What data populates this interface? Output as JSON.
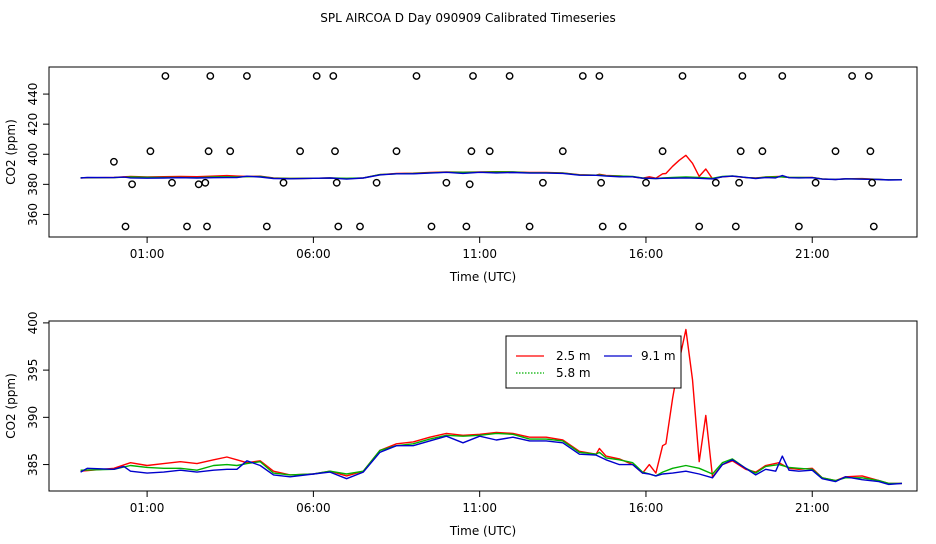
{
  "title": "SPL AIRCOA D  Day 090909  Calibrated Timeseries",
  "colors": {
    "s25": "#ff0000",
    "s58": "#00b000",
    "s91": "#0000cc",
    "points": "#000000"
  },
  "chart_data": [
    {
      "type": "scatter+line",
      "panel": "top",
      "xlabel": "Time (UTC)",
      "ylabel": "CO2 (ppm)",
      "xlim": [
        -1.95,
        24.15
      ],
      "ylim": [
        345,
        458
      ],
      "x_ticks": [
        {
          "x": 1,
          "label": "01:00"
        },
        {
          "x": 6,
          "label": "06:00"
        },
        {
          "x": 11,
          "label": "11:00"
        },
        {
          "x": 16,
          "label": "16:00"
        },
        {
          "x": 21,
          "label": "21:00"
        }
      ],
      "y_ticks": [
        360,
        380,
        400,
        420,
        440
      ],
      "points": [
        [
          0.0,
          395
        ],
        [
          0.35,
          352
        ],
        [
          0.55,
          380
        ],
        [
          1.1,
          402
        ],
        [
          1.55,
          452
        ],
        [
          1.75,
          381
        ],
        [
          2.2,
          352
        ],
        [
          2.55,
          380
        ],
        [
          2.75,
          381
        ],
        [
          2.8,
          352
        ],
        [
          2.85,
          402
        ],
        [
          2.9,
          452
        ],
        [
          3.5,
          402
        ],
        [
          4.0,
          452
        ],
        [
          4.6,
          352
        ],
        [
          5.1,
          381
        ],
        [
          5.6,
          402
        ],
        [
          6.1,
          452
        ],
        [
          6.6,
          452
        ],
        [
          6.65,
          402
        ],
        [
          6.7,
          381
        ],
        [
          6.75,
          352
        ],
        [
          7.4,
          352
        ],
        [
          7.9,
          381
        ],
        [
          8.5,
          402
        ],
        [
          9.1,
          452
        ],
        [
          9.55,
          352
        ],
        [
          10.0,
          381
        ],
        [
          10.6,
          352
        ],
        [
          10.7,
          380
        ],
        [
          10.75,
          402
        ],
        [
          10.8,
          452
        ],
        [
          11.3,
          402
        ],
        [
          11.9,
          452
        ],
        [
          12.5,
          352
        ],
        [
          12.9,
          381
        ],
        [
          13.5,
          402
        ],
        [
          14.1,
          452
        ],
        [
          14.6,
          452
        ],
        [
          14.65,
          381
        ],
        [
          14.7,
          352
        ],
        [
          15.3,
          352
        ],
        [
          16.0,
          381
        ],
        [
          16.5,
          402
        ],
        [
          17.1,
          452
        ],
        [
          17.6,
          352
        ],
        [
          18.1,
          381
        ],
        [
          18.7,
          352
        ],
        [
          18.8,
          381
        ],
        [
          18.85,
          402
        ],
        [
          18.9,
          452
        ],
        [
          19.5,
          402
        ],
        [
          20.1,
          452
        ],
        [
          20.6,
          352
        ],
        [
          21.1,
          381
        ],
        [
          21.7,
          402
        ],
        [
          22.2,
          452
        ],
        [
          22.7,
          452
        ],
        [
          22.75,
          402
        ],
        [
          22.8,
          381
        ],
        [
          22.85,
          352
        ]
      ]
    },
    {
      "type": "line",
      "panel": "bottom",
      "xlabel": "Time (UTC)",
      "ylabel": "CO2 (ppm)",
      "xlim": [
        -1.95,
        24.15
      ],
      "ylim": [
        382.2,
        400.2
      ],
      "x_ticks": [
        {
          "x": 1,
          "label": "01:00"
        },
        {
          "x": 6,
          "label": "06:00"
        },
        {
          "x": 11,
          "label": "11:00"
        },
        {
          "x": 16,
          "label": "16:00"
        },
        {
          "x": 21,
          "label": "21:00"
        }
      ],
      "y_ticks": [
        385,
        390,
        395,
        400
      ],
      "legend": {
        "position": "top-center",
        "entries": [
          "2.5 m",
          "9.1 m",
          "5.8 m"
        ]
      },
      "series": [
        {
          "name": "2.5 m",
          "color_key": "s25",
          "points": [
            [
              -1,
              384.3
            ],
            [
              0,
              384.6
            ],
            [
              0.5,
              385.2
            ],
            [
              1,
              384.9
            ],
            [
              1.5,
              385.1
            ],
            [
              2,
              385.3
            ],
            [
              2.5,
              385.1
            ],
            [
              3,
              385.5
            ],
            [
              3.4,
              385.8
            ],
            [
              3.7,
              385.5
            ],
            [
              4,
              385.2
            ],
            [
              4.4,
              385.4
            ],
            [
              4.8,
              384.3
            ],
            [
              5.3,
              383.9
            ],
            [
              6,
              384.0
            ],
            [
              6.5,
              384.3
            ],
            [
              7,
              383.8
            ],
            [
              7.5,
              384.3
            ],
            [
              8,
              386.5
            ],
            [
              8.5,
              387.2
            ],
            [
              9,
              387.4
            ],
            [
              9.5,
              387.9
            ],
            [
              10,
              388.3
            ],
            [
              10.5,
              388.1
            ],
            [
              11,
              388.2
            ],
            [
              11.5,
              388.4
            ],
            [
              12,
              388.3
            ],
            [
              12.5,
              387.9
            ],
            [
              13,
              387.9
            ],
            [
              13.5,
              387.6
            ],
            [
              14,
              386.4
            ],
            [
              14.5,
              386.1
            ],
            [
              14.6,
              386.7
            ],
            [
              14.8,
              385.9
            ],
            [
              15.2,
              385.6
            ],
            [
              15.6,
              385.0
            ],
            [
              15.9,
              384.1
            ],
            [
              16.1,
              385.0
            ],
            [
              16.3,
              384.1
            ],
            [
              16.5,
              387.0
            ],
            [
              16.6,
              387.2
            ],
            [
              16.8,
              392.0
            ],
            [
              17.0,
              396.0
            ],
            [
              17.2,
              399.3
            ],
            [
              17.4,
              394.0
            ],
            [
              17.6,
              385.3
            ],
            [
              17.8,
              390.2
            ],
            [
              18.0,
              383.7
            ],
            [
              18.3,
              385.0
            ],
            [
              18.6,
              385.4
            ],
            [
              19.0,
              384.5
            ],
            [
              19.3,
              384.2
            ],
            [
              19.6,
              384.9
            ],
            [
              20.0,
              385.2
            ],
            [
              20.3,
              384.6
            ],
            [
              20.6,
              384.5
            ],
            [
              21.0,
              384.6
            ],
            [
              21.3,
              383.6
            ],
            [
              21.7,
              383.3
            ],
            [
              22.0,
              383.7
            ],
            [
              22.5,
              383.8
            ],
            [
              23.0,
              383.3
            ],
            [
              23.3,
              383.0
            ],
            [
              23.7,
              383.0
            ]
          ]
        },
        {
          "name": "5.8 m",
          "color_key": "s58",
          "points": [
            [
              -1,
              384.4
            ],
            [
              0,
              384.5
            ],
            [
              0.5,
              384.9
            ],
            [
              1,
              384.7
            ],
            [
              1.5,
              384.6
            ],
            [
              2,
              384.6
            ],
            [
              2.5,
              384.4
            ],
            [
              3,
              384.9
            ],
            [
              3.4,
              385.0
            ],
            [
              3.7,
              384.9
            ],
            [
              4,
              385.1
            ],
            [
              4.4,
              385.3
            ],
            [
              4.8,
              384.1
            ],
            [
              5.3,
              383.9
            ],
            [
              6,
              384.0
            ],
            [
              6.5,
              384.3
            ],
            [
              7,
              384.0
            ],
            [
              7.5,
              384.3
            ],
            [
              8,
              386.5
            ],
            [
              8.5,
              387.0
            ],
            [
              9,
              387.2
            ],
            [
              9.5,
              387.7
            ],
            [
              10,
              388.1
            ],
            [
              10.5,
              388.0
            ],
            [
              11,
              388.1
            ],
            [
              11.5,
              388.3
            ],
            [
              12,
              388.2
            ],
            [
              12.5,
              387.7
            ],
            [
              13,
              387.7
            ],
            [
              13.5,
              387.5
            ],
            [
              14,
              386.3
            ],
            [
              14.5,
              386.1
            ],
            [
              14.6,
              386.3
            ],
            [
              14.8,
              385.7
            ],
            [
              15.2,
              385.5
            ],
            [
              15.6,
              385.2
            ],
            [
              15.9,
              384.2
            ],
            [
              16.1,
              384.0
            ],
            [
              16.3,
              383.8
            ],
            [
              16.5,
              384.2
            ],
            [
              16.8,
              384.6
            ],
            [
              17.2,
              384.9
            ],
            [
              17.6,
              384.6
            ],
            [
              18.0,
              384.0
            ],
            [
              18.3,
              385.2
            ],
            [
              18.6,
              385.6
            ],
            [
              19.0,
              384.6
            ],
            [
              19.3,
              384.1
            ],
            [
              19.6,
              384.8
            ],
            [
              20.0,
              385.0
            ],
            [
              20.3,
              384.7
            ],
            [
              20.6,
              384.6
            ],
            [
              21.0,
              384.5
            ],
            [
              21.3,
              383.6
            ],
            [
              21.7,
              383.3
            ],
            [
              22.0,
              383.6
            ],
            [
              22.5,
              383.6
            ],
            [
              23.0,
              383.3
            ],
            [
              23.3,
              383.0
            ],
            [
              23.7,
              383.0
            ]
          ]
        },
        {
          "name": "9.1 m",
          "color_key": "s91",
          "points": [
            [
              -1,
              384.2
            ],
            [
              -0.8,
              384.6
            ],
            [
              0,
              384.5
            ],
            [
              0.3,
              384.8
            ],
            [
              0.5,
              384.3
            ],
            [
              1,
              384.1
            ],
            [
              1.5,
              384.2
            ],
            [
              2,
              384.4
            ],
            [
              2.5,
              384.2
            ],
            [
              3,
              384.4
            ],
            [
              3.4,
              384.5
            ],
            [
              3.7,
              384.5
            ],
            [
              4,
              385.4
            ],
            [
              4.4,
              384.9
            ],
            [
              4.8,
              383.9
            ],
            [
              5.3,
              383.7
            ],
            [
              6,
              384.0
            ],
            [
              6.5,
              384.2
            ],
            [
              7,
              383.5
            ],
            [
              7.5,
              384.2
            ],
            [
              8,
              386.3
            ],
            [
              8.5,
              387.0
            ],
            [
              9,
              387.0
            ],
            [
              9.5,
              387.5
            ],
            [
              10,
              388.0
            ],
            [
              10.5,
              387.3
            ],
            [
              11,
              388.0
            ],
            [
              11.5,
              387.6
            ],
            [
              12,
              387.9
            ],
            [
              12.5,
              387.5
            ],
            [
              13,
              387.5
            ],
            [
              13.5,
              387.3
            ],
            [
              14,
              386.1
            ],
            [
              14.5,
              386.0
            ],
            [
              14.8,
              385.5
            ],
            [
              15.2,
              385.0
            ],
            [
              15.6,
              385.0
            ],
            [
              15.9,
              384.1
            ],
            [
              16.1,
              384.0
            ],
            [
              16.3,
              383.8
            ],
            [
              16.5,
              384.0
            ],
            [
              16.8,
              384.1
            ],
            [
              17.2,
              384.3
            ],
            [
              17.6,
              384.0
            ],
            [
              18.0,
              383.6
            ],
            [
              18.3,
              385.0
            ],
            [
              18.6,
              385.5
            ],
            [
              19.0,
              384.6
            ],
            [
              19.3,
              383.9
            ],
            [
              19.6,
              384.5
            ],
            [
              19.9,
              384.3
            ],
            [
              20.1,
              385.9
            ],
            [
              20.3,
              384.4
            ],
            [
              20.6,
              384.3
            ],
            [
              21.0,
              384.4
            ],
            [
              21.3,
              383.5
            ],
            [
              21.7,
              383.2
            ],
            [
              22.0,
              383.7
            ],
            [
              22.5,
              383.4
            ],
            [
              23.0,
              383.2
            ],
            [
              23.3,
              382.9
            ],
            [
              23.7,
              383.0
            ]
          ]
        }
      ]
    }
  ]
}
